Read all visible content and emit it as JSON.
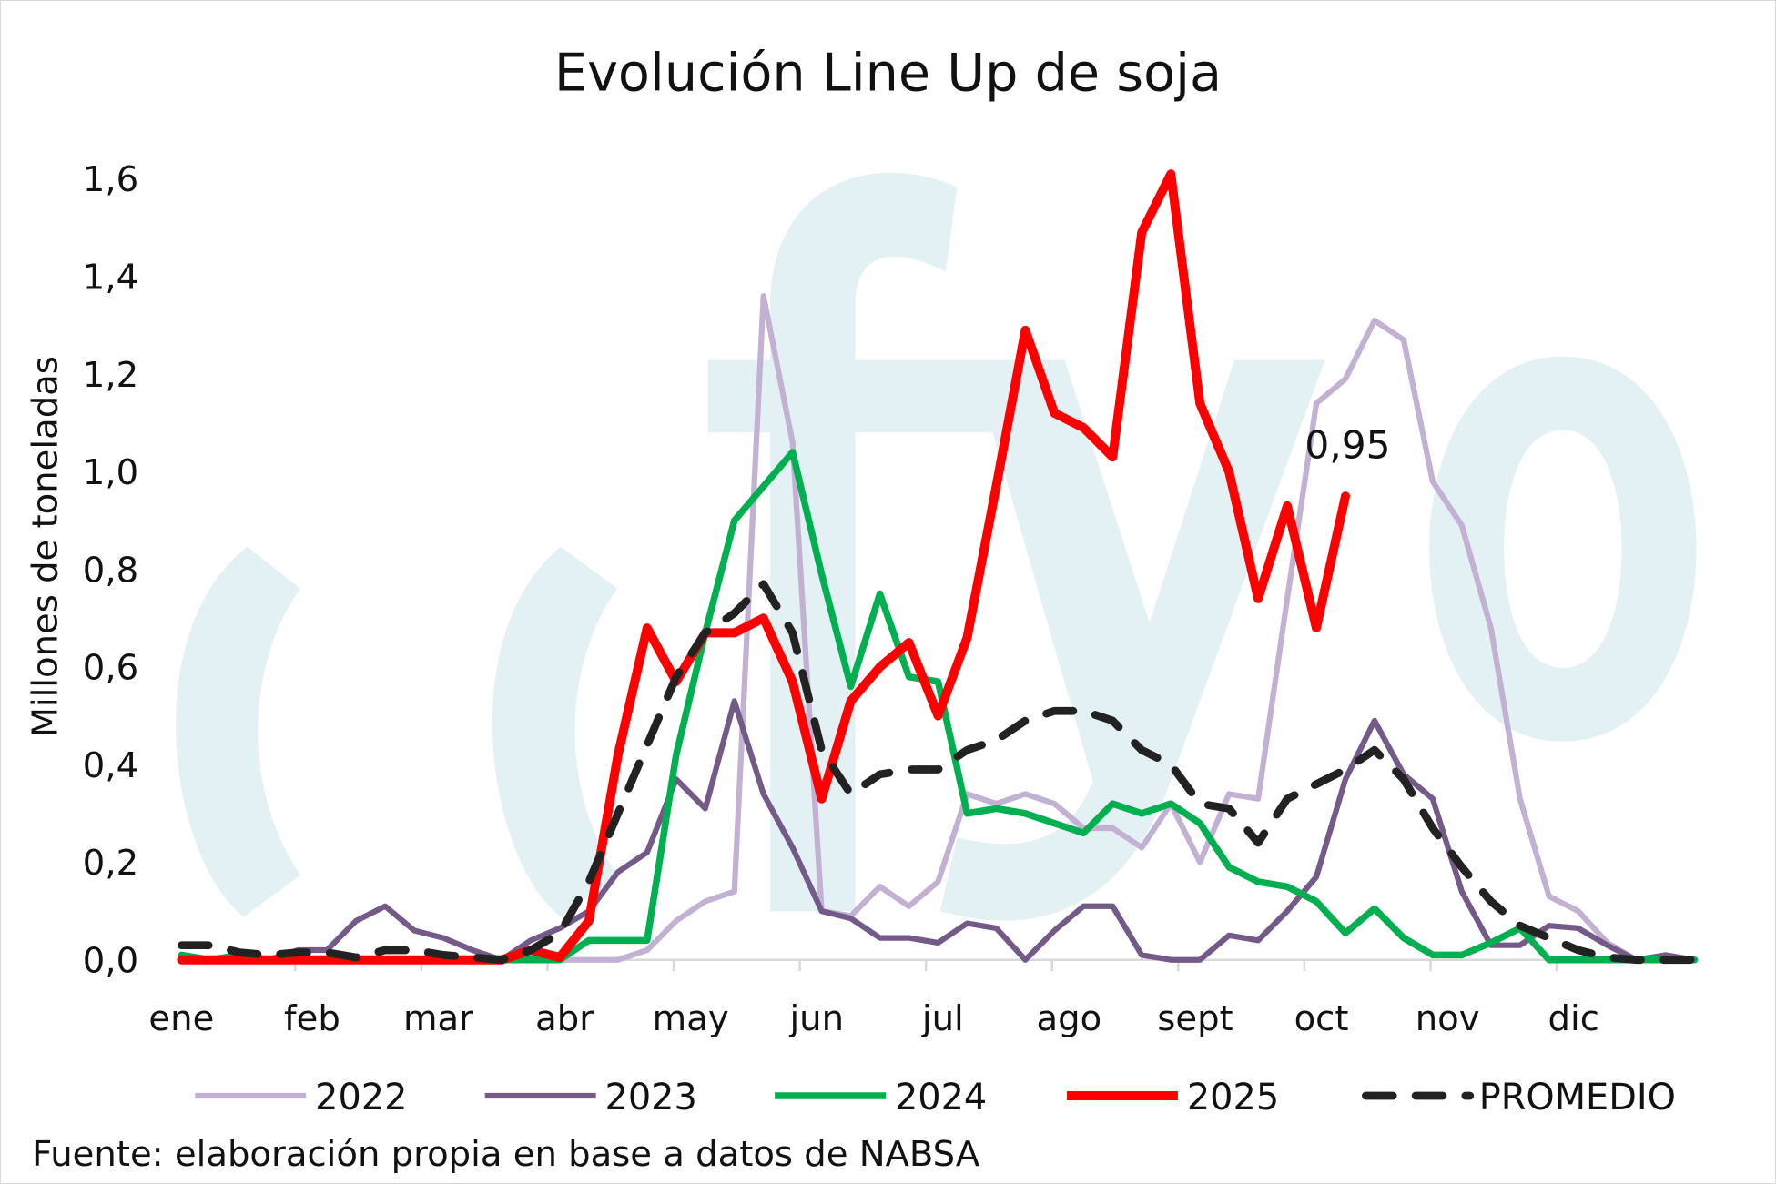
{
  "chart_data": {
    "type": "line",
    "title": "Evolución Line Up de soja",
    "ylabel": "Millones de toneladas",
    "xlabel": "",
    "ylim": [
      0,
      1.6
    ],
    "y_ticks": [
      "0,0",
      "0,2",
      "0,4",
      "0,6",
      "0,8",
      "1,0",
      "1,2",
      "1,4",
      "1,6"
    ],
    "y_tick_values": [
      0,
      0.2,
      0.4,
      0.6,
      0.8,
      1.0,
      1.2,
      1.4,
      1.6
    ],
    "x_tick_labels": [
      "ene",
      "feb",
      "mar",
      "abr",
      "may",
      "jun",
      "jul",
      "ago",
      "sept",
      "oct",
      "nov",
      "dic"
    ],
    "x_unit": "semana del año",
    "grid": false,
    "legend_position": "bottom",
    "annotation": {
      "text": "0,95",
      "series": "2025"
    },
    "source": "Fuente: elaboración propia en base a datos de NABSA",
    "series": [
      {
        "name": "2022",
        "color": "#c2b1d3",
        "dash": false,
        "values": [
          0,
          0,
          0,
          0,
          0,
          0,
          0,
          0,
          0,
          0,
          0,
          0,
          0,
          0,
          0,
          0,
          0.02,
          0.08,
          0.12,
          0.14,
          1.36,
          1.06,
          0.1,
          0.09,
          0.15,
          0.11,
          0.16,
          0.34,
          0.32,
          0.34,
          0.32,
          0.27,
          0.27,
          0.23,
          0.32,
          0.2,
          0.34,
          0.33,
          0.74,
          1.14,
          1.19,
          1.31,
          1.27,
          0.98,
          0.89,
          0.68,
          0.33,
          0.13,
          0.1,
          0.035,
          0,
          0,
          0
        ]
      },
      {
        "name": "2023",
        "color": "#735a88",
        "dash": false,
        "values": [
          0,
          0,
          0,
          0,
          0.02,
          0.02,
          0.08,
          0.11,
          0.06,
          0.045,
          0.02,
          0,
          0.04,
          0.065,
          0.1,
          0.18,
          0.22,
          0.37,
          0.31,
          0.53,
          0.34,
          0.23,
          0.1,
          0.085,
          0.045,
          0.045,
          0.035,
          0.075,
          0.065,
          0,
          0.06,
          0.11,
          0.11,
          0.01,
          0,
          0,
          0.05,
          0.04,
          0.1,
          0.17,
          0.37,
          0.49,
          0.38,
          0.33,
          0.14,
          0.03,
          0.03,
          0.07,
          0.065,
          0.03,
          0,
          0.01,
          0
        ]
      },
      {
        "name": "2024",
        "color": "#00b050",
        "dash": false,
        "values": [
          0.01,
          0,
          0.01,
          0,
          0,
          0,
          0,
          0,
          0,
          0,
          0,
          0,
          0,
          0,
          0.04,
          0.04,
          0.04,
          0.42,
          0.67,
          0.9,
          0.97,
          1.04,
          0.79,
          0.56,
          0.75,
          0.58,
          0.57,
          0.3,
          0.31,
          0.3,
          0.28,
          0.26,
          0.32,
          0.3,
          0.32,
          0.28,
          0.19,
          0.16,
          0.15,
          0.12,
          0.055,
          0.105,
          0.045,
          0.01,
          0.01,
          0.035,
          0.065,
          0,
          0,
          0,
          0,
          0,
          0
        ]
      },
      {
        "name": "2025",
        "color": "#ff0000",
        "dash": false,
        "values": [
          0,
          0,
          0,
          0,
          0,
          0,
          0,
          0,
          0,
          0,
          0,
          0,
          0.02,
          0.005,
          0.08,
          0.42,
          0.68,
          0.57,
          0.67,
          0.67,
          0.7,
          0.57,
          0.33,
          0.53,
          0.6,
          0.65,
          0.5,
          0.66,
          0.97,
          1.29,
          1.12,
          1.09,
          1.03,
          1.49,
          1.61,
          1.14,
          1.0,
          0.74,
          0.93,
          0.68,
          0.95
        ]
      },
      {
        "name": "PROMEDIO",
        "color": "#222222",
        "dash": true,
        "values": [
          0.03,
          0.03,
          0.015,
          0.01,
          0.015,
          0.015,
          0.005,
          0.02,
          0.02,
          0.01,
          0.005,
          0,
          0.02,
          0.055,
          0.16,
          0.3,
          0.44,
          0.58,
          0.67,
          0.71,
          0.77,
          0.67,
          0.43,
          0.34,
          0.38,
          0.39,
          0.39,
          0.43,
          0.45,
          0.49,
          0.51,
          0.51,
          0.49,
          0.43,
          0.4,
          0.32,
          0.31,
          0.24,
          0.33,
          0.36,
          0.39,
          0.43,
          0.37,
          0.27,
          0.19,
          0.12,
          0.07,
          0.045,
          0.02,
          0.005,
          0,
          0,
          0
        ]
      }
    ]
  },
  "watermark": {
    "text": "cfyo",
    "color": "#e3f1f4"
  }
}
